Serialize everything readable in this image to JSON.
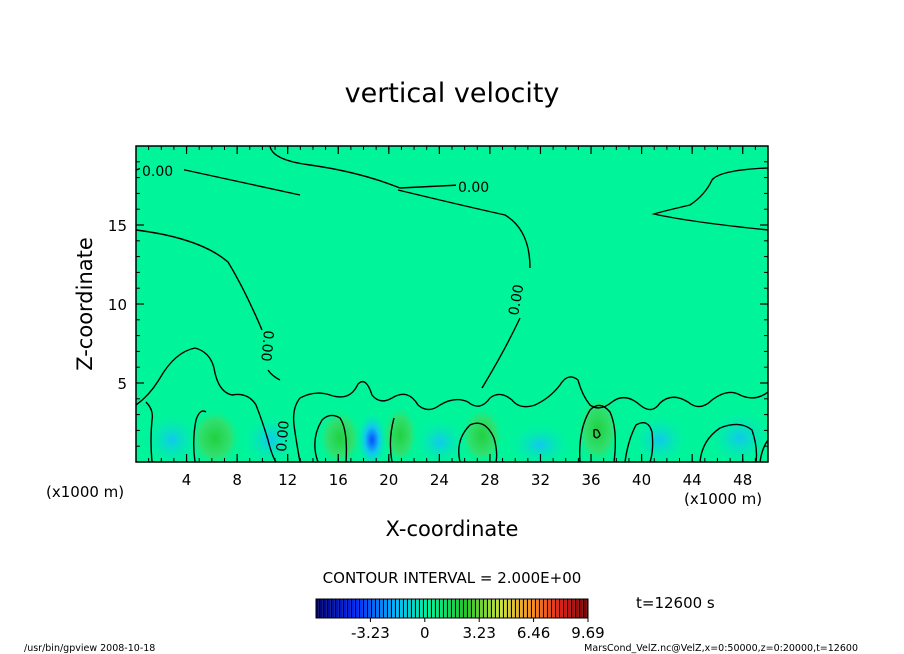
{
  "chart_data": {
    "type": "heatmap",
    "title": "vertical velocity",
    "xlabel": "X-coordinate",
    "ylabel": "Z-coordinate",
    "x_unit_label": "(x1000 m)",
    "x_ticks": [
      4,
      8,
      12,
      16,
      20,
      24,
      28,
      32,
      36,
      40,
      44,
      48
    ],
    "y_ticks": [
      5,
      10,
      15
    ],
    "xlim": [
      0,
      50
    ],
    "ylim": [
      0,
      20
    ],
    "contour_labels": [
      "0.00",
      "0.00",
      "0.00",
      "0.00",
      "0.00"
    ],
    "contour_interval_text": "CONTOUR INTERVAL = 2.000E+00",
    "time_text": "t=12600 s",
    "colorbar": {
      "tick_labels": [
        "-3.23",
        "0",
        "3.23",
        "6.46",
        "9.69"
      ],
      "tick_values": [
        -3.23,
        0,
        3.23,
        6.46,
        9.69
      ],
      "range": [
        -6.46,
        9.69
      ]
    },
    "background_color": "#00f59a",
    "footer_left": "/usr/bin/gpview   2008-10-18",
    "footer_right": "MarsCond_VelZ.nc@VelZ,x=0:50000,z=0:20000,t=12600"
  }
}
